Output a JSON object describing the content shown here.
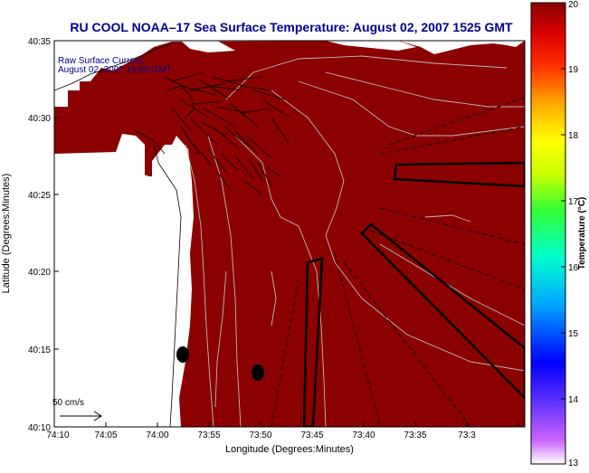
{
  "title": "RU COOL  NOAA–17  Sea Surface Temperature:  August 02, 2007 1525 GMT",
  "current_label": {
    "line1": "Raw Surface Current:",
    "line2": "August 02, 2007 15:00 GMT"
  },
  "scale_label": "50 cm/s",
  "xaxis": {
    "label": "Longitude (Degrees:Minutes)",
    "ticks": [
      "74:10",
      "74:05",
      "74:00",
      "73:55",
      "73:50",
      "73:45",
      "73:40",
      "73:35",
      "73:3"
    ]
  },
  "yaxis": {
    "label": "Latitude (Degrees:Minutes)",
    "ticks": [
      "40:35",
      "40:30",
      "40:25",
      "40:20",
      "40:15",
      "40:10"
    ]
  },
  "colorbar": {
    "label": "Temperature (°C)",
    "ticks": [
      "20",
      "19",
      "18",
      "17",
      "16",
      "15",
      "14",
      "13"
    ]
  },
  "colors": {
    "sst": "#8b0000",
    "land": "#ffffff",
    "title": "#00008b",
    "annotation": "#00008b"
  }
}
